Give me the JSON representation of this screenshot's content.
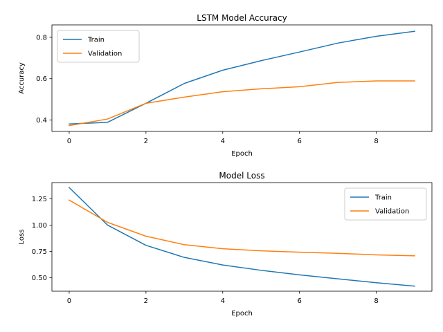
{
  "chart_data": [
    {
      "type": "line",
      "title": "LSTM Model Accuracy",
      "xlabel": "Epoch",
      "ylabel": "Accuracy",
      "xlim": [
        -0.45,
        9.45
      ],
      "ylim": [
        0.345,
        0.86
      ],
      "xticks": [
        0,
        2,
        4,
        6,
        8
      ],
      "xtick_labels": [
        "0",
        "2",
        "4",
        "6",
        "8"
      ],
      "yticks": [
        0.4,
        0.6,
        0.8
      ],
      "ytick_labels": [
        "0.4",
        "0.6",
        "0.8"
      ],
      "legend_position": "top-left",
      "grid": false,
      "x": [
        0,
        1,
        2,
        3,
        4,
        5,
        6,
        7,
        8,
        9
      ],
      "series": [
        {
          "name": "Train",
          "color": "#1f77b4",
          "values": [
            0.381,
            0.389,
            0.481,
            0.577,
            0.641,
            0.687,
            0.729,
            0.772,
            0.805,
            0.829
          ]
        },
        {
          "name": "Validation",
          "color": "#ff7f0e",
          "values": [
            0.373,
            0.405,
            0.481,
            0.511,
            0.537,
            0.551,
            0.561,
            0.582,
            0.589,
            0.589
          ]
        }
      ]
    },
    {
      "type": "line",
      "title": "Model Loss",
      "xlabel": "Epoch",
      "ylabel": "Loss",
      "xlim": [
        -0.45,
        9.45
      ],
      "ylim": [
        0.37,
        1.405
      ],
      "xticks": [
        0,
        2,
        4,
        6,
        8
      ],
      "xtick_labels": [
        "0",
        "2",
        "4",
        "6",
        "8"
      ],
      "yticks": [
        0.5,
        0.75,
        1.0,
        1.25
      ],
      "ytick_labels": [
        "0.50",
        "0.75",
        "1.00",
        "1.25"
      ],
      "legend_position": "top-right",
      "grid": false,
      "x": [
        0,
        1,
        2,
        3,
        4,
        5,
        6,
        7,
        8,
        9
      ],
      "series": [
        {
          "name": "Train",
          "color": "#1f77b4",
          "values": [
            1.358,
            1.0,
            0.807,
            0.692,
            0.62,
            0.569,
            0.526,
            0.488,
            0.451,
            0.418
          ]
        },
        {
          "name": "Validation",
          "color": "#ff7f0e",
          "values": [
            1.238,
            1.026,
            0.894,
            0.813,
            0.775,
            0.755,
            0.742,
            0.731,
            0.716,
            0.707
          ]
        }
      ]
    }
  ]
}
